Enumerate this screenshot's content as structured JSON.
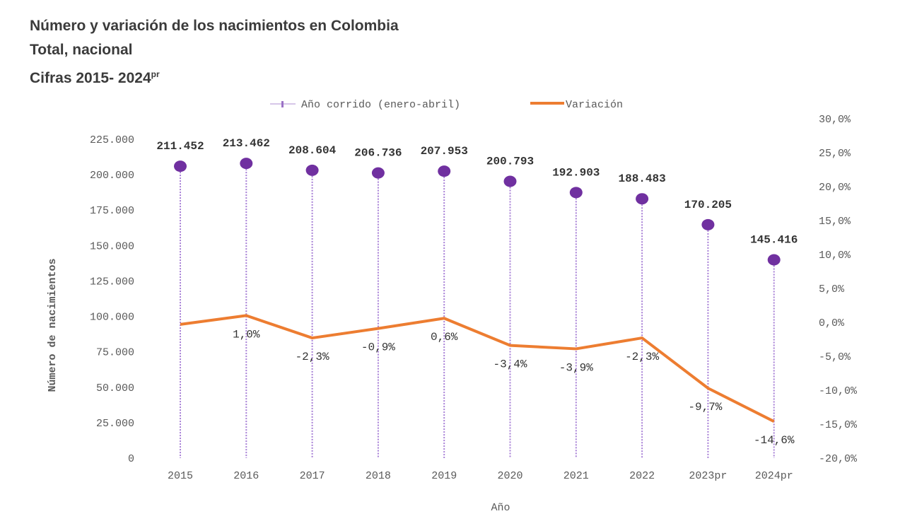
{
  "header": {
    "title": "Número y variación de los nacimientos en Colombia",
    "subtitle": "Total, nacional",
    "period": "Cifras 2015- 2024",
    "period_sup": "pr"
  },
  "chart_data": {
    "type": "bar",
    "xlabel": "Año",
    "ylabel": "Número de nacimientos",
    "categories": [
      "2015",
      "2016",
      "2017",
      "2018",
      "2019",
      "2020",
      "2021",
      "2022",
      "2023pr",
      "2024pr"
    ],
    "ylim": [
      0,
      225000
    ],
    "yticks": [
      "0",
      "25.000",
      "50.000",
      "75.000",
      "100.000",
      "125.000",
      "150.000",
      "175.000",
      "200.000",
      "225.000"
    ],
    "y2lim": [
      -20,
      30
    ],
    "y2ticks": [
      "-20,0%",
      "-15,0%",
      "-10,0%",
      "-5,0%",
      "0,0%",
      "5,0%",
      "10,0%",
      "15,0%",
      "20,0%",
      "25,0%",
      "30,0%"
    ],
    "legend_position": "top",
    "grid": false,
    "series": [
      {
        "name": "Año corrido (enero-abril)",
        "kind": "lollipop",
        "axis": "left",
        "color": "#7030a0",
        "values": [
          211452,
          213462,
          208604,
          206736,
          207953,
          200793,
          192903,
          188483,
          170205,
          145416
        ],
        "labels": [
          "211.452",
          "213.462",
          "208.604",
          "206.736",
          "207.953",
          "200.793",
          "192.903",
          "188.483",
          "170.205",
          "145.416"
        ]
      },
      {
        "name": "Variación",
        "kind": "line",
        "axis": "right",
        "color": "#ed7d31",
        "values": [
          -0.3,
          1.0,
          -2.3,
          -0.9,
          0.6,
          -3.4,
          -3.9,
          -2.3,
          -9.7,
          -14.6
        ],
        "labels": [
          "",
          "1,0%",
          "-2,3%",
          "-0,9%",
          "0,6%",
          "-3,4%",
          "-3,9%",
          "-2,3%",
          "-9,7%",
          "-14,6%"
        ]
      }
    ]
  }
}
